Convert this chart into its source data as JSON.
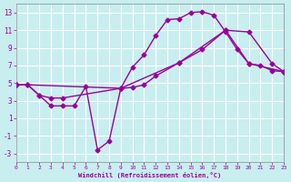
{
  "xlabel": "Windchill (Refroidissement éolien,°C)",
  "bg_color": "#c8eef0",
  "line_color": "#990099",
  "grid_color": "#ffffff",
  "xlim": [
    0,
    23
  ],
  "ylim": [
    -4,
    14
  ],
  "xticks": [
    0,
    1,
    2,
    3,
    4,
    5,
    6,
    7,
    8,
    9,
    10,
    11,
    12,
    13,
    14,
    15,
    16,
    17,
    18,
    19,
    20,
    21,
    22,
    23
  ],
  "yticks": [
    -3,
    -1,
    1,
    3,
    5,
    7,
    9,
    11,
    13
  ],
  "series1_x": [
    0,
    1,
    2,
    3,
    4,
    5,
    6,
    7,
    8,
    9,
    10,
    11,
    12,
    13,
    14,
    15,
    16,
    17,
    18,
    19,
    20,
    21,
    22,
    23
  ],
  "series1_y": [
    4.8,
    4.8,
    3.6,
    2.4,
    2.4,
    2.4,
    4.6,
    -2.6,
    -1.6,
    4.4,
    6.8,
    8.2,
    10.4,
    12.2,
    12.3,
    13.0,
    13.1,
    12.7,
    10.8,
    8.8,
    7.2,
    7.0,
    6.4,
    6.3
  ],
  "series2_x": [
    0,
    1,
    2,
    3,
    4,
    9,
    10,
    11,
    12,
    14,
    16,
    18,
    20,
    22,
    23
  ],
  "series2_y": [
    4.8,
    4.8,
    3.6,
    3.3,
    3.3,
    4.4,
    4.5,
    4.8,
    5.8,
    7.3,
    8.8,
    11.0,
    10.8,
    7.2,
    6.3
  ],
  "series3_x": [
    0,
    1,
    9,
    14,
    18,
    20,
    23
  ],
  "series3_y": [
    4.8,
    4.8,
    4.4,
    7.3,
    11.0,
    7.2,
    6.3
  ],
  "marker": "D",
  "markersize": 2.5,
  "linewidth": 1.0
}
